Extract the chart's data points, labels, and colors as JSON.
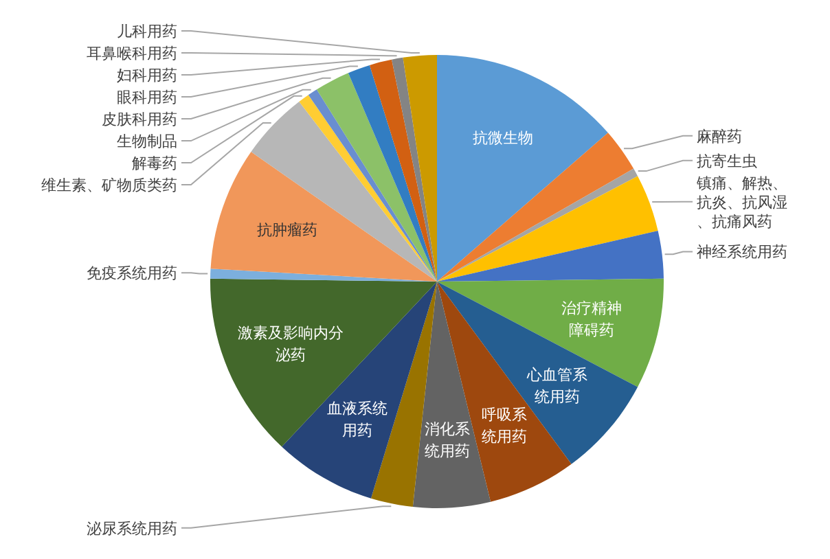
{
  "chart_data": {
    "type": "pie",
    "categories": [
      "抗微生物",
      "麻醉药",
      "抗寄生虫",
      "镇痛、解热、抗炎、抗风湿、抗痛风药",
      "神经系统用药",
      "治疗精神障碍药",
      "心血管系统用药",
      "呼吸系统用药",
      "消化系统用药",
      "泌尿系统用药",
      "血液系统用药",
      "激素及影响内分泌药",
      "免疫系统用药",
      "抗肿瘤药",
      "维生素、矿物质类药",
      "解毒药",
      "生物制品",
      "皮肤科用药",
      "眼科用药",
      "妇科用药",
      "耳鼻喉科用药",
      "儿科用药"
    ],
    "values": [
      13.6,
      3.1,
      0.6,
      4.1,
      3.4,
      7.9,
      7.2,
      6.3,
      5.5,
      3.0,
      7.3,
      13.2,
      0.7,
      8.8,
      4.9,
      0.8,
      0.7,
      2.5,
      1.6,
      1.6,
      0.8,
      2.4
    ],
    "colors": [
      "#5b9bd5",
      "#ed7d31",
      "#a5a5a5",
      "#ffc000",
      "#4472c4",
      "#70ad47",
      "#255e91",
      "#9e480e",
      "#636363",
      "#997300",
      "#264478",
      "#43682b",
      "#7cafdd",
      "#f1975a",
      "#b7b7b7",
      "#ffcd33",
      "#698ed0",
      "#8cc168",
      "#327dc2",
      "#d26012",
      "#848484",
      "#cc9a00"
    ]
  }
}
